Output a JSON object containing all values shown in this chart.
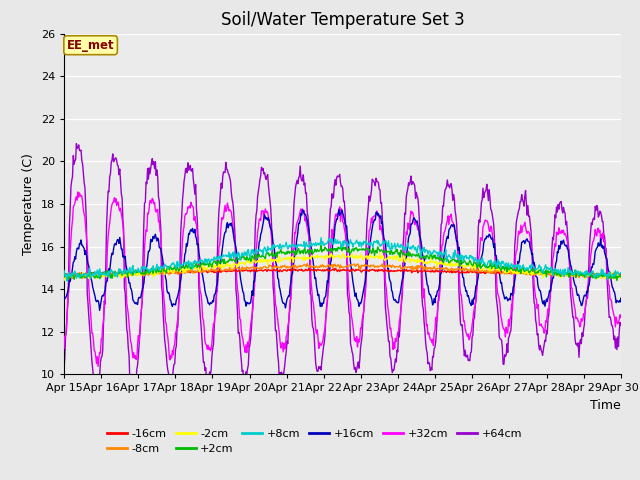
{
  "title": "Soil/Water Temperature Set 3",
  "xlabel": "Time",
  "ylabel": "Temperature (C)",
  "ylim": [
    10,
    26
  ],
  "yticks": [
    10,
    12,
    14,
    16,
    18,
    20,
    22,
    24,
    26
  ],
  "x_labels": [
    "Apr 15",
    "Apr 16",
    "Apr 17",
    "Apr 18",
    "Apr 19",
    "Apr 20",
    "Apr 21",
    "Apr 22",
    "Apr 23",
    "Apr 24",
    "Apr 25",
    "Apr 26",
    "Apr 27",
    "Apr 28",
    "Apr 29",
    "Apr 30"
  ],
  "annotation": "EE_met",
  "series_colors": {
    "-16cm": "#ff0000",
    "-8cm": "#ff8800",
    "-2cm": "#ffff00",
    "+2cm": "#00bb00",
    "+8cm": "#00cccc",
    "+16cm": "#0000bb",
    "+32cm": "#ff00ff",
    "+64cm": "#9900cc"
  },
  "bg_color": "#e8e8e8",
  "plot_bg": "#ebebeb",
  "title_fontsize": 12,
  "axis_fontsize": 9,
  "tick_fontsize": 8
}
